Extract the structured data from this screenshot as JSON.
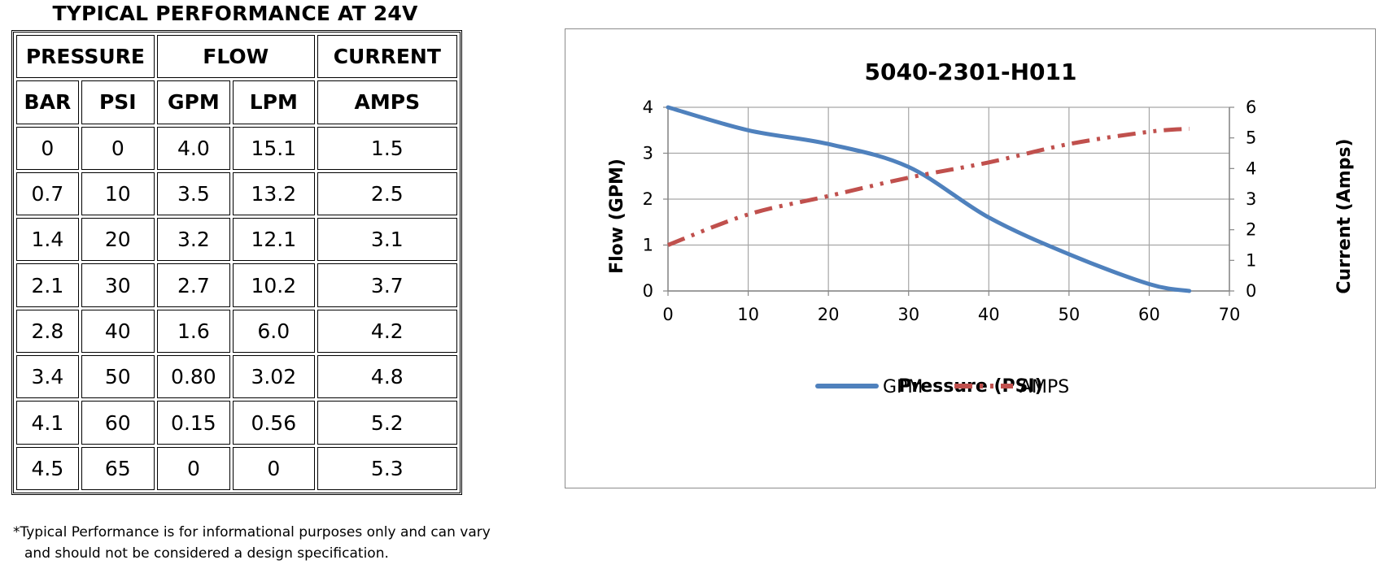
{
  "table": {
    "title": "TYPICAL PERFORMANCE AT 24V",
    "group_headers": [
      "PRESSURE",
      "FLOW",
      "CURRENT"
    ],
    "sub_headers": [
      "BAR",
      "PSI",
      "GPM",
      "LPM",
      "AMPS"
    ],
    "rows": [
      [
        "0",
        "0",
        "4.0",
        "15.1",
        "1.5"
      ],
      [
        "0.7",
        "10",
        "3.5",
        "13.2",
        "2.5"
      ],
      [
        "1.4",
        "20",
        "3.2",
        "12.1",
        "3.1"
      ],
      [
        "2.1",
        "30",
        "2.7",
        "10.2",
        "3.7"
      ],
      [
        "2.8",
        "40",
        "1.6",
        "6.0",
        "4.2"
      ],
      [
        "3.4",
        "50",
        "0.80",
        "3.02",
        "4.8"
      ],
      [
        "4.1",
        "60",
        "0.15",
        "0.56",
        "5.2"
      ],
      [
        "4.5",
        "65",
        "0",
        "0",
        "5.3"
      ]
    ],
    "footnote_line1": "*Typical Performance is for informational purposes only and can vary",
    "footnote_line2": "and should not be considered a design specification."
  },
  "chart_data": {
    "type": "line",
    "title": "5040-2301-H011",
    "xlabel": "Pressure (PSI)",
    "ylabel": "Flow (GPM)",
    "y2label": "Current (Amps)",
    "xlim": [
      0,
      70
    ],
    "ylim": [
      0,
      4
    ],
    "y2lim": [
      0,
      6
    ],
    "xticks": [
      0,
      10,
      20,
      30,
      40,
      50,
      60,
      70
    ],
    "yticks": [
      0,
      1,
      2,
      3,
      4
    ],
    "y2ticks": [
      0,
      1,
      2,
      3,
      4,
      5,
      6
    ],
    "grid": true,
    "legend": "bottom",
    "x": [
      0,
      10,
      20,
      30,
      40,
      50,
      60,
      65
    ],
    "series": [
      {
        "name": "GPM",
        "axis": "left",
        "values": [
          4.0,
          3.5,
          3.2,
          2.7,
          1.6,
          0.8,
          0.15,
          0
        ],
        "color": "#4f81bd",
        "style": "solid"
      },
      {
        "name": "AMPS",
        "axis": "right",
        "values": [
          1.5,
          2.5,
          3.1,
          3.7,
          4.2,
          4.8,
          5.2,
          5.3
        ],
        "color": "#c0504d",
        "style": "dash-dot-dot"
      }
    ]
  }
}
